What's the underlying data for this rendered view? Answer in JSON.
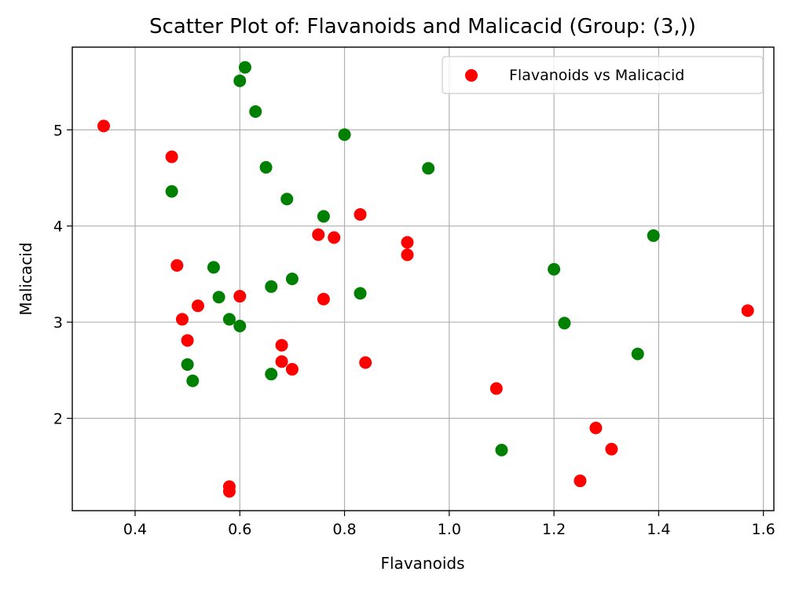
{
  "chart_data": {
    "type": "scatter",
    "title": "Scatter Plot of: Flavanoids and Malicacid (Group: (3,))",
    "xlabel": "Flavanoids",
    "ylabel": "Malicacid",
    "xlim": [
      0.28,
      1.62
    ],
    "ylim": [
      1.04,
      5.86
    ],
    "xticks": [
      0.4,
      0.6,
      0.8,
      1.0,
      1.2,
      1.4,
      1.6
    ],
    "xtick_labels": [
      "0.4",
      "0.6",
      "0.8",
      "1.0",
      "1.2",
      "1.4",
      "1.6"
    ],
    "yticks": [
      2,
      3,
      4,
      5
    ],
    "ytick_labels": [
      "2",
      "3",
      "4",
      "5"
    ],
    "grid": true,
    "legend_position": "top-right",
    "series": [
      {
        "name": "Flavanoids vs Malicacid",
        "color": "#ff0000",
        "points": [
          [
            0.34,
            5.04
          ],
          [
            0.47,
            4.72
          ],
          [
            0.48,
            3.59
          ],
          [
            0.52,
            3.17
          ],
          [
            0.49,
            3.03
          ],
          [
            0.5,
            2.81
          ],
          [
            0.6,
            3.27
          ],
          [
            0.58,
            1.29
          ],
          [
            0.58,
            1.24
          ],
          [
            0.68,
            2.76
          ],
          [
            0.68,
            2.59
          ],
          [
            0.7,
            2.51
          ],
          [
            0.75,
            3.91
          ],
          [
            0.78,
            3.88
          ],
          [
            0.76,
            3.24
          ],
          [
            0.83,
            4.12
          ],
          [
            0.84,
            2.58
          ],
          [
            0.92,
            3.83
          ],
          [
            0.92,
            3.7
          ],
          [
            1.09,
            2.31
          ],
          [
            1.25,
            1.35
          ],
          [
            1.28,
            1.9
          ],
          [
            1.31,
            1.68
          ],
          [
            1.57,
            3.12
          ]
        ]
      },
      {
        "color": "#008000",
        "points": [
          [
            0.61,
            5.65
          ],
          [
            0.6,
            5.51
          ],
          [
            0.63,
            5.19
          ],
          [
            0.8,
            4.95
          ],
          [
            0.65,
            4.61
          ],
          [
            0.96,
            4.6
          ],
          [
            0.47,
            4.36
          ],
          [
            0.69,
            4.28
          ],
          [
            0.76,
            4.1
          ],
          [
            0.55,
            3.57
          ],
          [
            0.7,
            3.45
          ],
          [
            0.66,
            3.37
          ],
          [
            0.83,
            3.3
          ],
          [
            0.56,
            3.26
          ],
          [
            0.58,
            3.03
          ],
          [
            0.6,
            2.96
          ],
          [
            0.5,
            2.56
          ],
          [
            0.66,
            2.46
          ],
          [
            0.51,
            2.39
          ],
          [
            1.2,
            3.55
          ],
          [
            1.22,
            2.99
          ],
          [
            1.39,
            3.9
          ],
          [
            1.36,
            2.67
          ],
          [
            1.1,
            1.67
          ]
        ]
      }
    ]
  }
}
